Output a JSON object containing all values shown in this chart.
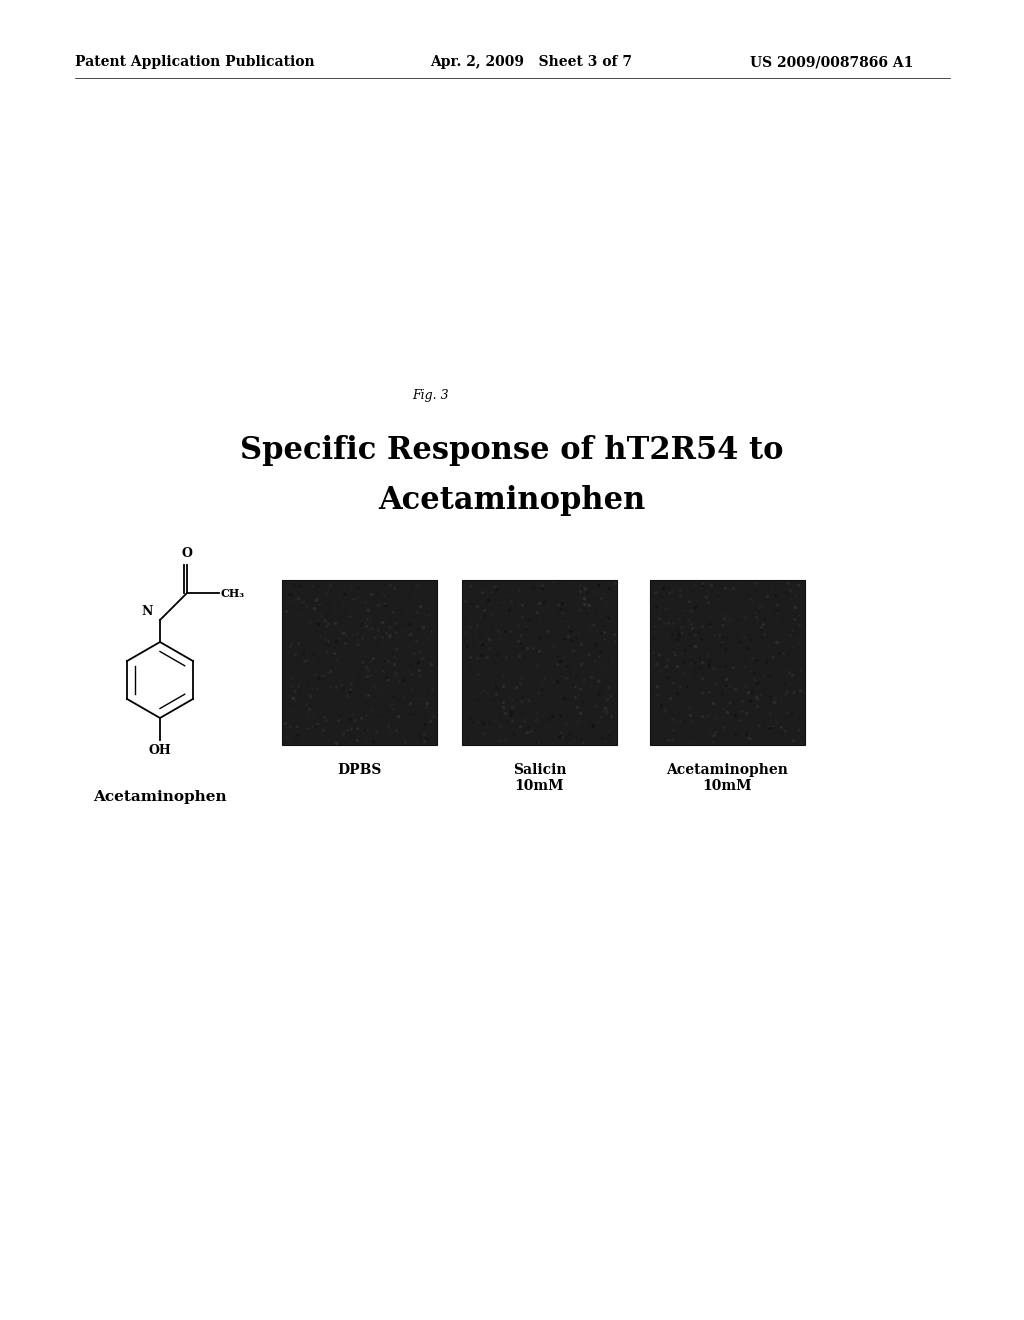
{
  "bg_color": "#ffffff",
  "header_left": "Patent Application Publication",
  "header_mid": "Apr. 2, 2009   Sheet 3 of 7",
  "header_right": "US 2009/0087866 A1",
  "fig_label": "Fig. 3",
  "title_line1": "Specific Response of hT2R54 to",
  "title_line2": "Acetaminophen",
  "chem_label": "Acetaminophen",
  "box_labels": [
    "DPBS",
    "Salicin\n10mM",
    "Acetaminophen\n10mM"
  ],
  "box_color": "#1c1c1c",
  "header_fontsize": 10,
  "fig_label_fontsize": 9,
  "title_fontsize": 22,
  "label_fontsize": 10,
  "chem_label_fontsize": 11
}
